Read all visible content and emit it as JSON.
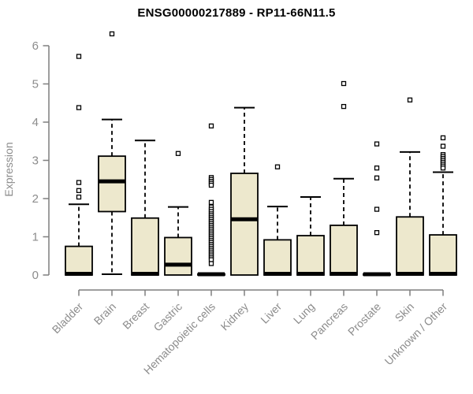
{
  "colors": {
    "box_fill": "#EDE8CD",
    "box_stroke": "#000000",
    "median": "#000000",
    "whisker": "#000000",
    "outlier_fill": "#FFFFFF",
    "axis": "#7f7f7f",
    "tick_text": "#8c8c8c",
    "title_text": "#000000",
    "background": "#FFFFFF"
  },
  "chart_data": {
    "type": "boxplot",
    "title": "ENSG00000217889 - RP11-66N11.5",
    "xlabel": "",
    "ylabel": "Expression",
    "ylim": [
      0,
      6.5
    ],
    "yticks": [
      0,
      1,
      2,
      3,
      4,
      5,
      6
    ],
    "grid": "off",
    "legend": "none",
    "categories": [
      "Bladder",
      "Brain",
      "Breast",
      "Gastric",
      "Hematopoietic cells",
      "Kidney",
      "Liver",
      "Lung",
      "Pancreas",
      "Prostate",
      "Skin",
      "Unknown / Other"
    ],
    "series": [
      {
        "name": "Bladder",
        "low": 0,
        "q1": 0,
        "median": 0.03,
        "q3": 0.75,
        "high": 1.85,
        "outliers": [
          2.04,
          2.21,
          2.42,
          4.38,
          5.72
        ]
      },
      {
        "name": "Brain",
        "low": 0.02,
        "q1": 1.66,
        "median": 2.45,
        "q3": 3.11,
        "high": 4.07,
        "outliers": [
          6.31
        ]
      },
      {
        "name": "Breast",
        "low": 0,
        "q1": 0,
        "median": 0.03,
        "q3": 1.49,
        "high": 3.52,
        "outliers": []
      },
      {
        "name": "Gastric",
        "low": 0,
        "q1": 0,
        "median": 0.27,
        "q3": 0.98,
        "high": 1.78,
        "outliers": [
          3.18
        ]
      },
      {
        "name": "Hematopoietic cells",
        "low": 0,
        "q1": 0,
        "median": 0.02,
        "q3": 0.03,
        "high": 0.03,
        "outliers": [
          3.9,
          2.55,
          2.5,
          2.45,
          2.4,
          2.35,
          1.9,
          1.78,
          1.72,
          1.66,
          1.6,
          1.55,
          1.5,
          1.45,
          1.4,
          1.35,
          1.3,
          1.25,
          1.2,
          1.15,
          1.1,
          1.05,
          1.0,
          0.95,
          0.9,
          0.85,
          0.8,
          0.75,
          0.7,
          0.65,
          0.6,
          0.55,
          0.5,
          0.45,
          0.4,
          0.3
        ]
      },
      {
        "name": "Kidney",
        "low": 0,
        "q1": 0,
        "median": 1.46,
        "q3": 2.66,
        "high": 4.38,
        "outliers": []
      },
      {
        "name": "Liver",
        "low": 0,
        "q1": 0,
        "median": 0.03,
        "q3": 0.92,
        "high": 1.79,
        "outliers": [
          2.83
        ]
      },
      {
        "name": "Lung",
        "low": 0,
        "q1": 0,
        "median": 0.03,
        "q3": 1.03,
        "high": 2.04,
        "outliers": []
      },
      {
        "name": "Pancreas",
        "low": 0,
        "q1": 0,
        "median": 0.03,
        "q3": 1.3,
        "high": 2.52,
        "outliers": [
          4.41,
          5.01
        ]
      },
      {
        "name": "Prostate",
        "low": 0,
        "q1": 0,
        "median": 0.02,
        "q3": 0.03,
        "high": 0.03,
        "outliers": [
          1.11,
          1.72,
          2.54,
          2.8,
          3.43
        ]
      },
      {
        "name": "Skin",
        "low": 0,
        "q1": 0,
        "median": 0.03,
        "q3": 1.52,
        "high": 3.22,
        "outliers": [
          4.58
        ]
      },
      {
        "name": "Unknown / Other",
        "low": 0,
        "q1": 0,
        "median": 0.03,
        "q3": 1.05,
        "high": 2.69,
        "outliers": [
          3.59,
          3.37,
          3.15,
          3.1,
          3.05,
          3.0,
          2.95,
          2.9,
          2.85,
          2.8
        ]
      }
    ]
  }
}
